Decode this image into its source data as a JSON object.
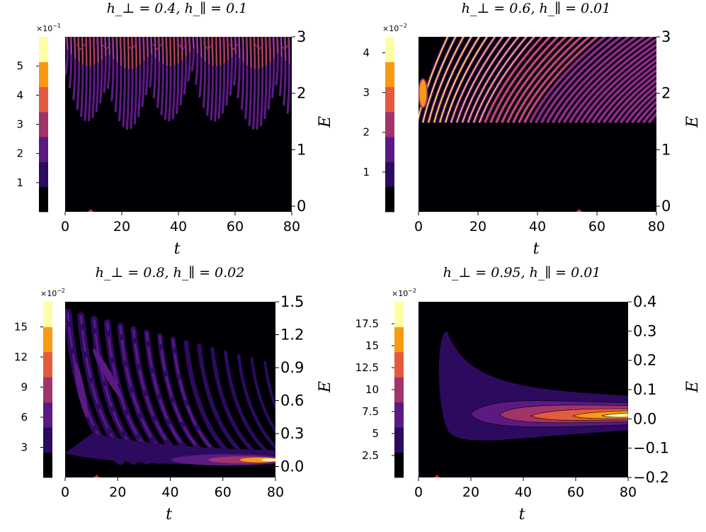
{
  "chart_data": [
    {
      "type": "heatmap",
      "title": "h_⊥ = 0.4, h_∥ = 0.1",
      "title_parts": {
        "h_perp": "0.4",
        "h_par": "0.1"
      },
      "xlabel": "t",
      "ylabel": "E",
      "xlim": [
        0,
        80
      ],
      "ylim": [
        -0.1,
        3.0
      ],
      "xticks": [
        "0",
        "20",
        "40",
        "60",
        "80"
      ],
      "yticks": [
        {
          "v": 0,
          "l": "0"
        },
        {
          "v": 1,
          "l": "1"
        },
        {
          "v": 2,
          "l": "2"
        },
        {
          "v": 3,
          "l": "3"
        }
      ],
      "colorbar": {
        "multiplier": "×10",
        "exp": "−1",
        "range": [
          0,
          0.6
        ],
        "ticks": [
          {
            "v": 0.1,
            "l": "1"
          },
          {
            "v": 0.2,
            "l": "2"
          },
          {
            "v": 0.3,
            "l": "3"
          },
          {
            "v": 0.4,
            "l": "4"
          },
          {
            "v": 0.5,
            "l": "5"
          }
        ]
      },
      "marker_t": 9,
      "pattern": "bands_top"
    },
    {
      "type": "heatmap",
      "title": "h_⊥ = 0.6, h_∥ = 0.01",
      "title_parts": {
        "h_perp": "0.6",
        "h_par": "0.01"
      },
      "xlabel": "t",
      "ylabel": "E",
      "xlim": [
        0,
        80
      ],
      "ylim": [
        -0.1,
        3.0
      ],
      "xticks": [
        "0",
        "20",
        "40",
        "60",
        "80"
      ],
      "yticks": [
        {
          "v": 0,
          "l": "0"
        },
        {
          "v": 1,
          "l": "1"
        },
        {
          "v": 2,
          "l": "2"
        },
        {
          "v": 3,
          "l": "3"
        }
      ],
      "colorbar": {
        "multiplier": "×10",
        "exp": "−2",
        "range": [
          0,
          4.4
        ],
        "ticks": [
          {
            "v": 1,
            "l": "1"
          },
          {
            "v": 2,
            "l": "2"
          },
          {
            "v": 3,
            "l": "3"
          },
          {
            "v": 4,
            "l": "4"
          }
        ]
      },
      "marker_t": 54,
      "pattern": "fan_upper"
    },
    {
      "type": "heatmap",
      "title": "h_⊥ = 0.8, h_∥ = 0.02",
      "title_parts": {
        "h_perp": "0.8",
        "h_par": "0.02"
      },
      "xlabel": "t",
      "ylabel": "E",
      "xlim": [
        0,
        80
      ],
      "ylim": [
        -0.1,
        1.5
      ],
      "xticks": [
        "0",
        "20",
        "40",
        "60",
        "80"
      ],
      "yticks": [
        {
          "v": 0.0,
          "l": "0.0"
        },
        {
          "v": 0.3,
          "l": "0.3"
        },
        {
          "v": 0.6,
          "l": "0.6"
        },
        {
          "v": 0.9,
          "l": "0.9"
        },
        {
          "v": 1.2,
          "l": "1.2"
        },
        {
          "v": 1.5,
          "l": "1.5"
        }
      ],
      "colorbar": {
        "multiplier": "×10",
        "exp": "−2",
        "range": [
          0,
          17.5
        ],
        "ticks": [
          {
            "v": 3,
            "l": "3"
          },
          {
            "v": 6,
            "l": "6"
          },
          {
            "v": 9,
            "l": "9"
          },
          {
            "v": 12,
            "l": "12"
          },
          {
            "v": 15,
            "l": "15"
          }
        ]
      },
      "marker_t": 12,
      "pattern": "fan_lower"
    },
    {
      "type": "heatmap",
      "title": "h_⊥ = 0.95, h_∥ = 0.01",
      "title_parts": {
        "h_perp": "0.95",
        "h_par": "0.01"
      },
      "xlabel": "t",
      "ylabel": "E",
      "xlim": [
        0,
        80
      ],
      "ylim": [
        -0.2,
        0.4
      ],
      "xticks": [
        "0",
        "20",
        "40",
        "60",
        "80"
      ],
      "yticks": [
        {
          "v": -0.2,
          "l": "−0.2"
        },
        {
          "v": -0.1,
          "l": "−0.1"
        },
        {
          "v": 0.0,
          "l": "0.0"
        },
        {
          "v": 0.1,
          "l": "0.1"
        },
        {
          "v": 0.2,
          "l": "0.2"
        },
        {
          "v": 0.3,
          "l": "0.3"
        },
        {
          "v": 0.4,
          "l": "0.4"
        }
      ],
      "colorbar": {
        "multiplier": "×10",
        "exp": "−2",
        "range": [
          0,
          20
        ],
        "ticks": [
          {
            "v": 2.5,
            "l": "2.5"
          },
          {
            "v": 5,
            "l": "5"
          },
          {
            "v": 7.5,
            "l": "7.5"
          },
          {
            "v": 10,
            "l": "10"
          },
          {
            "v": 12.5,
            "l": "12.5"
          },
          {
            "v": 15,
            "l": "15"
          },
          {
            "v": 17.5,
            "l": "17.5"
          }
        ]
      },
      "marker_t": 7,
      "pattern": "lobe"
    }
  ],
  "colormap": [
    "#000004",
    "#2c0b5e",
    "#5b1a83",
    "#a13469",
    "#e35a3e",
    "#f99a13",
    "#fcffa4"
  ],
  "marker_color": "#e8231d"
}
